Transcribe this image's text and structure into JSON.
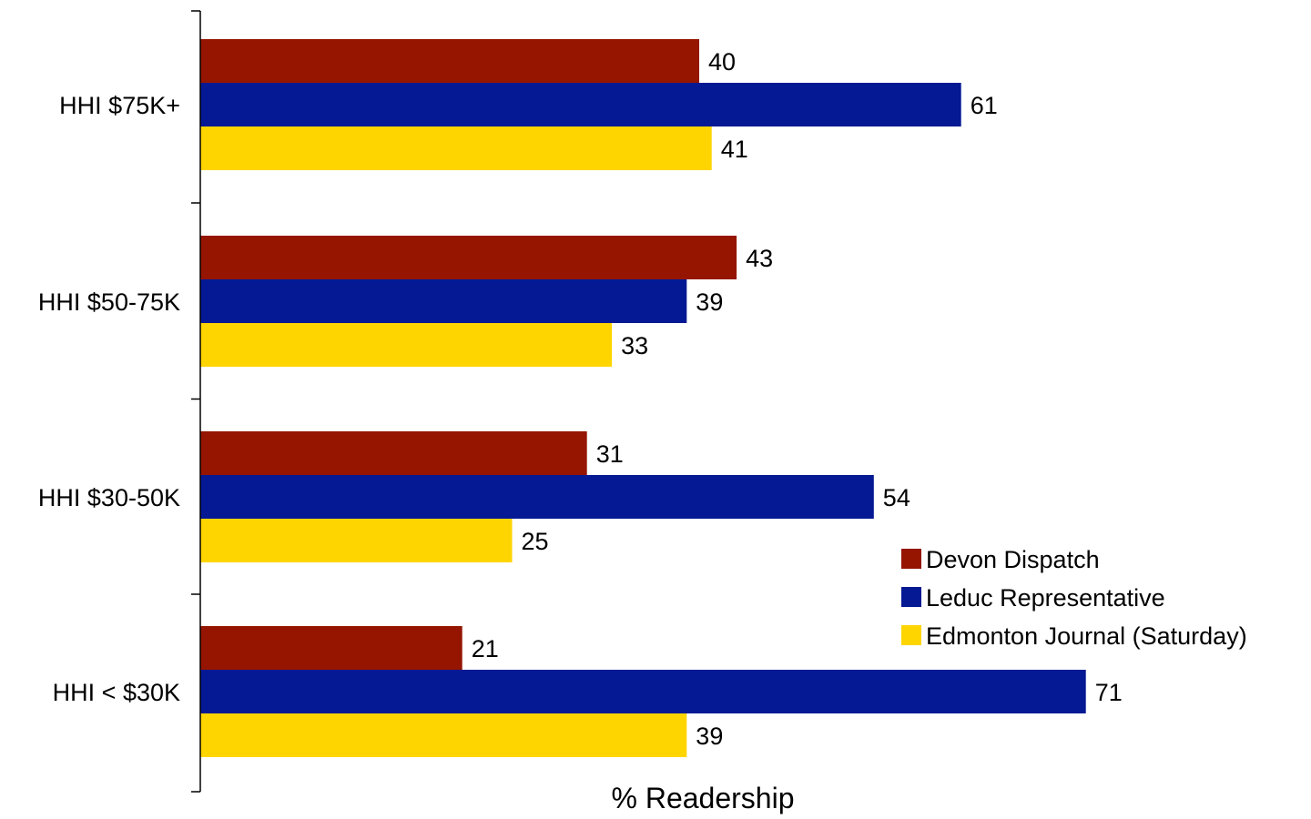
{
  "chart_data": {
    "type": "bar",
    "orientation": "horizontal",
    "title": "",
    "xlabel": "% Readership",
    "ylabel": "",
    "categories": [
      "HHI $75K+",
      "HHI $50-75K",
      "HHI $30-50K",
      "HHI < $30K"
    ],
    "series": [
      {
        "name": "Devon Dispatch",
        "color": "#951500",
        "values": [
          40,
          43,
          31,
          21
        ]
      },
      {
        "name": "Leduc Representative",
        "color": "#041993",
        "values": [
          61,
          39,
          54,
          71
        ]
      },
      {
        "name": "Edmonton Journal (Saturday)",
        "color": "#FFD500",
        "values": [
          41,
          33,
          25,
          39
        ]
      }
    ],
    "xlim": [
      0,
      80
    ],
    "grid": false,
    "data_labels": true,
    "legend_position": "right"
  }
}
